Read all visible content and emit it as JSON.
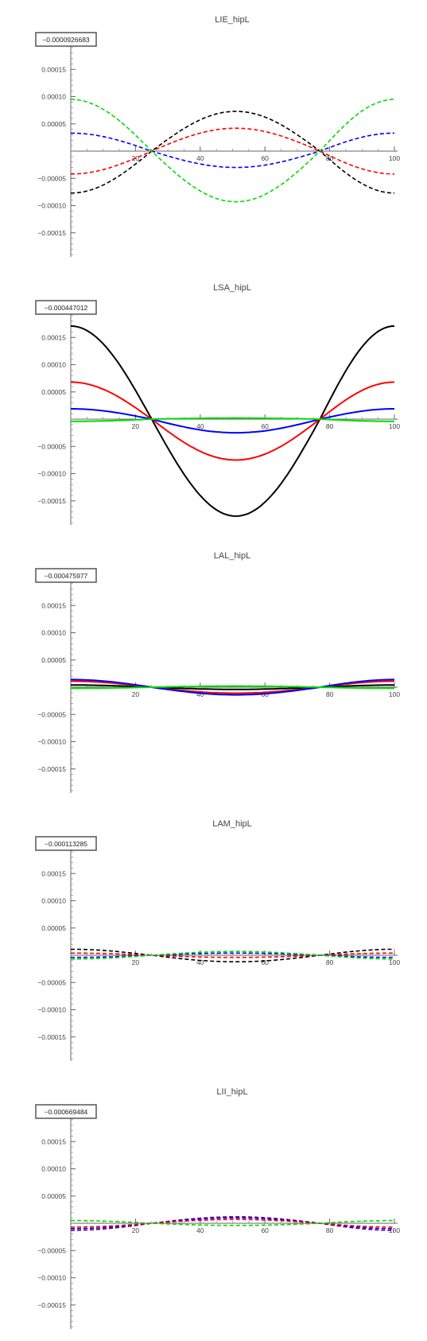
{
  "colors": {
    "black": "#000000",
    "red": "#ff0000",
    "blue": "#0000ff",
    "green": "#00dd00",
    "purple": "#7a007a",
    "axis": "#555555"
  },
  "chart_data": [
    {
      "type": "line",
      "title": "LIE_hipL",
      "badge": "−0.0000926683",
      "xlim": [
        0,
        100
      ],
      "ylim": [
        -0.0002,
        0.0002
      ],
      "xticks": [
        {
          "v": 20,
          "label": "20"
        },
        {
          "v": 40,
          "label": "40"
        },
        {
          "v": 60,
          "label": "60"
        },
        {
          "v": 80,
          "label": "80"
        },
        {
          "v": 100,
          "label": "100"
        }
      ],
      "yticks": [
        {
          "v": 0.00015,
          "label": "0.00015"
        },
        {
          "v": 0.0001,
          "label": "0.00010"
        },
        {
          "v": 5e-05,
          "label": "0.00005"
        },
        {
          "v": -5e-05,
          "label": "−0.00005"
        },
        {
          "v": -0.0001,
          "label": "−0.00010"
        },
        {
          "v": -0.00015,
          "label": "−0.00015"
        }
      ],
      "series": [
        {
          "color": "black",
          "dash": true,
          "x": [
            0,
            25,
            51,
            77,
            100
          ],
          "y": [
            -7.7e-05,
            0.0,
            7.3e-05,
            0.0,
            -7.7e-05
          ]
        },
        {
          "color": "red",
          "dash": true,
          "x": [
            0,
            25,
            51,
            77,
            100
          ],
          "y": [
            -4.2e-05,
            0.0,
            4.2e-05,
            0.0,
            -4.2e-05
          ]
        },
        {
          "color": "blue",
          "dash": true,
          "x": [
            0,
            25,
            51,
            77,
            100
          ],
          "y": [
            3.3e-05,
            0.0,
            -3e-05,
            0.0,
            3.3e-05
          ]
        },
        {
          "color": "green",
          "dash": true,
          "x": [
            0,
            25,
            51,
            77,
            100
          ],
          "y": [
            9.5e-05,
            0.0,
            -9.3e-05,
            0.0,
            9.5e-05
          ]
        }
      ]
    },
    {
      "type": "line",
      "title": "LSA_hipL",
      "badge": "−0.000447012",
      "xlim": [
        0,
        100
      ],
      "ylim": [
        -0.0002,
        0.0002
      ],
      "xticks": [
        {
          "v": 20,
          "label": "20"
        },
        {
          "v": 40,
          "label": "40"
        },
        {
          "v": 60,
          "label": "60"
        },
        {
          "v": 80,
          "label": "80"
        },
        {
          "v": 100,
          "label": "100"
        }
      ],
      "yticks": [
        {
          "v": 0.00015,
          "label": "0.00015"
        },
        {
          "v": 0.0001,
          "label": "0.00010"
        },
        {
          "v": 5e-05,
          "label": "0.00005"
        },
        {
          "v": -5e-05,
          "label": "−0.00005"
        },
        {
          "v": -0.0001,
          "label": "−0.00010"
        },
        {
          "v": -0.00015,
          "label": "−0.00015"
        }
      ],
      "series": [
        {
          "color": "black",
          "dash": false,
          "x": [
            0,
            25,
            51,
            77,
            100
          ],
          "y": [
            0.000171,
            0.0,
            -0.000178,
            0.0,
            0.000171
          ]
        },
        {
          "color": "red",
          "dash": false,
          "x": [
            0,
            25,
            51,
            77,
            100
          ],
          "y": [
            6.8e-05,
            0.0,
            -7.5e-05,
            0.0,
            6.8e-05
          ]
        },
        {
          "color": "blue",
          "dash": false,
          "x": [
            0,
            25,
            51,
            77,
            100
          ],
          "y": [
            1.9e-05,
            0.0,
            -2.5e-05,
            0.0,
            1.9e-05
          ]
        },
        {
          "color": "green",
          "dash": false,
          "x": [
            0,
            25,
            51,
            77,
            100
          ],
          "y": [
            -4e-06,
            0.0,
            2e-06,
            0.0,
            -4e-06
          ]
        }
      ]
    },
    {
      "type": "line",
      "title": "LAL_hipL",
      "badge": "−0.000475977",
      "xlim": [
        0,
        100
      ],
      "ylim": [
        -0.0002,
        0.0002
      ],
      "xticks": [
        {
          "v": 20,
          "label": "20"
        },
        {
          "v": 40,
          "label": "40"
        },
        {
          "v": 60,
          "label": "60"
        },
        {
          "v": 80,
          "label": "80"
        },
        {
          "v": 100,
          "label": "100"
        }
      ],
      "yticks": [
        {
          "v": 0.00015,
          "label": "0.00015"
        },
        {
          "v": 0.0001,
          "label": "0.00010"
        },
        {
          "v": 5e-05,
          "label": "0.00005"
        },
        {
          "v": -5e-05,
          "label": "−0.00005"
        },
        {
          "v": -0.0001,
          "label": "−0.00010"
        },
        {
          "v": -0.00015,
          "label": "−0.00015"
        }
      ],
      "series": [
        {
          "color": "black",
          "dash": false,
          "x": [
            0,
            25,
            51,
            77,
            100
          ],
          "y": [
            4e-06,
            0.0,
            -4e-06,
            0.0,
            4e-06
          ]
        },
        {
          "color": "red",
          "dash": false,
          "x": [
            0,
            25,
            51,
            77,
            100
          ],
          "y": [
            1.1e-05,
            0.0,
            -1.1e-05,
            0.0,
            1.1e-05
          ]
        },
        {
          "color": "blue",
          "dash": false,
          "x": [
            0,
            25,
            51,
            77,
            100
          ],
          "y": [
            1.4e-05,
            0.0,
            -1.4e-05,
            0.0,
            1.4e-05
          ]
        },
        {
          "color": "green",
          "dash": false,
          "x": [
            0,
            25,
            51,
            77,
            100
          ],
          "y": [
            -2e-06,
            0.0,
            2e-06,
            0.0,
            -2e-06
          ]
        }
      ]
    },
    {
      "type": "line",
      "title": "LAM_hipL",
      "badge": "−0.000113285",
      "xlim": [
        0,
        100
      ],
      "ylim": [
        -0.0002,
        0.0002
      ],
      "xticks": [
        {
          "v": 20,
          "label": "20"
        },
        {
          "v": 40,
          "label": "40"
        },
        {
          "v": 60,
          "label": "60"
        },
        {
          "v": 80,
          "label": "80"
        },
        {
          "v": 100,
          "label": "100"
        }
      ],
      "yticks": [
        {
          "v": 0.00015,
          "label": "0.00015"
        },
        {
          "v": 0.0001,
          "label": "0.00010"
        },
        {
          "v": 5e-05,
          "label": "0.00005"
        },
        {
          "v": -5e-05,
          "label": "−0.00005"
        },
        {
          "v": -0.0001,
          "label": "−0.00010"
        },
        {
          "v": -0.00015,
          "label": "−0.00015"
        }
      ],
      "series": [
        {
          "color": "black",
          "dash": true,
          "x": [
            0,
            25,
            51,
            77,
            100
          ],
          "y": [
            1.1e-05,
            0.0,
            -1.2e-05,
            0.0,
            1.1e-05
          ]
        },
        {
          "color": "red",
          "dash": true,
          "x": [
            0,
            25,
            51,
            77,
            100
          ],
          "y": [
            4e-06,
            0.0,
            -4e-06,
            0.0,
            4e-06
          ]
        },
        {
          "color": "blue",
          "dash": true,
          "x": [
            0,
            25,
            51,
            77,
            100
          ],
          "y": [
            -4e-06,
            0.0,
            4e-06,
            0.0,
            -4e-06
          ]
        },
        {
          "color": "green",
          "dash": true,
          "x": [
            0,
            25,
            51,
            77,
            100
          ],
          "y": [
            -7e-06,
            0.0,
            7e-06,
            0.0,
            -7e-06
          ]
        }
      ]
    },
    {
      "type": "line",
      "title": "LII_hipL",
      "badge": "−0.000669484",
      "xlim": [
        0,
        100
      ],
      "ylim": [
        -0.0002,
        0.0002
      ],
      "xticks": [
        {
          "v": 20,
          "label": "20"
        },
        {
          "v": 40,
          "label": "40"
        },
        {
          "v": 60,
          "label": "60"
        },
        {
          "v": 80,
          "label": "80"
        },
        {
          "v": 100,
          "label": "100"
        }
      ],
      "yticks": [
        {
          "v": 0.00015,
          "label": "0.00015"
        },
        {
          "v": 0.0001,
          "label": "0.00010"
        },
        {
          "v": 5e-05,
          "label": "0.00005"
        },
        {
          "v": -5e-05,
          "label": "−0.00005"
        },
        {
          "v": -0.0001,
          "label": "−0.00010"
        },
        {
          "v": -0.00015,
          "label": "−0.00015"
        }
      ],
      "series": [
        {
          "color": "purple",
          "dash": true,
          "x": [
            0,
            25,
            51,
            77,
            100
          ],
          "y": [
            -1.3e-05,
            0.0,
            1.2e-05,
            0.0,
            -1.3e-05
          ]
        },
        {
          "color": "blue",
          "dash": true,
          "x": [
            0,
            25,
            51,
            77,
            100
          ],
          "y": [
            -1e-05,
            0.0,
            1e-05,
            0.0,
            -1e-05
          ]
        },
        {
          "color": "red",
          "dash": true,
          "x": [
            0,
            25,
            51,
            77,
            100
          ],
          "y": [
            -7e-06,
            0.0,
            7e-06,
            0.0,
            -7e-06
          ]
        },
        {
          "color": "green",
          "dash": true,
          "x": [
            0,
            25,
            51,
            77,
            100
          ],
          "y": [
            5e-06,
            0.0,
            -4e-06,
            0.0,
            5e-06
          ]
        }
      ]
    }
  ]
}
